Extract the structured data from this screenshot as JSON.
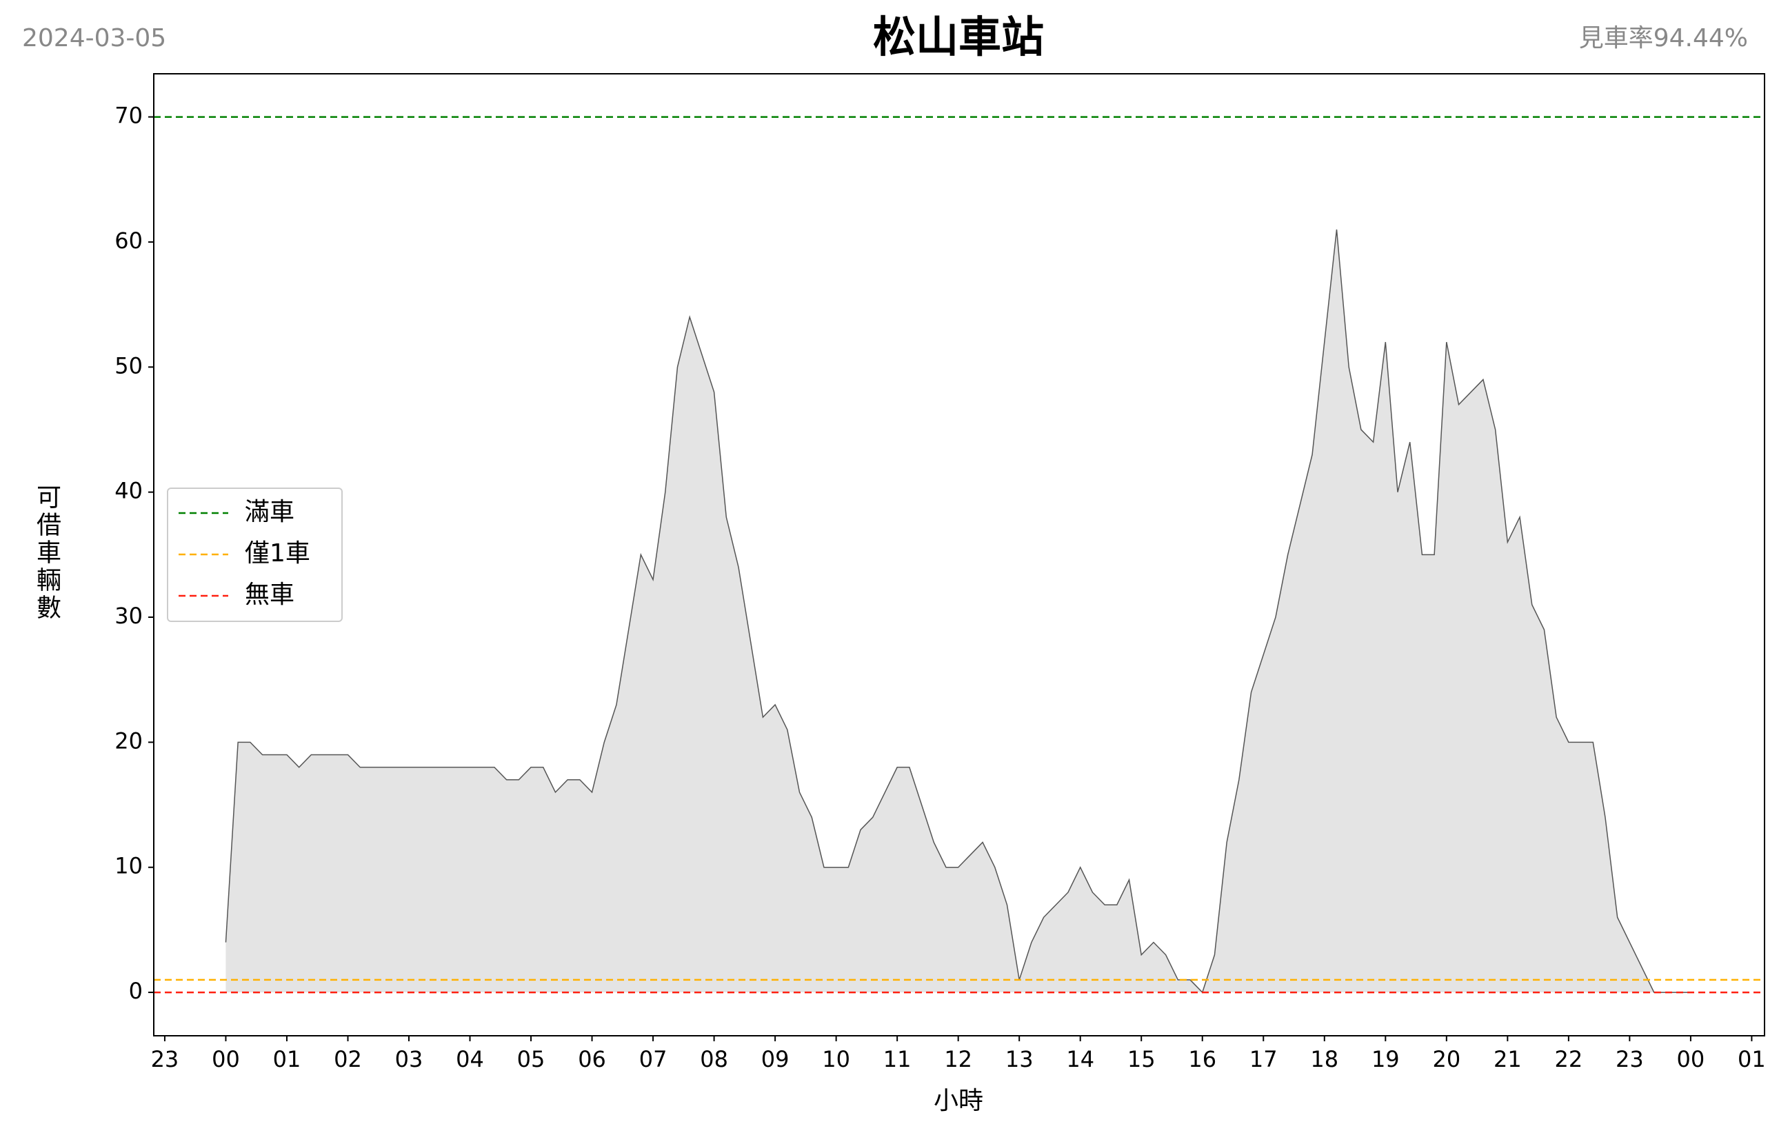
{
  "chart_data": {
    "type": "area",
    "title": "松山車站",
    "date": "2024-03-05",
    "annotation": "見車率94.44%",
    "xlabel": "小時",
    "ylabel": "可借車輛數",
    "x": [
      0,
      0.2,
      0.4,
      0.6,
      0.8,
      1,
      1.2,
      1.4,
      1.6,
      1.8,
      2,
      2.2,
      2.4,
      2.6,
      2.8,
      3,
      3.2,
      3.4,
      3.6,
      3.8,
      4,
      4.2,
      4.4,
      4.6,
      4.8,
      5,
      5.2,
      5.4,
      5.6,
      5.8,
      6,
      6.2,
      6.4,
      6.6,
      6.8,
      7,
      7.2,
      7.4,
      7.6,
      7.8,
      8,
      8.2,
      8.4,
      8.6,
      8.8,
      9,
      9.2,
      9.4,
      9.6,
      9.8,
      10,
      10.2,
      10.4,
      10.6,
      10.8,
      11,
      11.2,
      11.4,
      11.6,
      11.8,
      12,
      12.2,
      12.4,
      12.6,
      12.8,
      13,
      13.2,
      13.4,
      13.6,
      13.8,
      14,
      14.2,
      14.4,
      14.6,
      14.8,
      15,
      15.2,
      15.4,
      15.6,
      15.8,
      16,
      16.2,
      16.4,
      16.6,
      16.8,
      17,
      17.2,
      17.4,
      17.6,
      17.8,
      18,
      18.2,
      18.4,
      18.6,
      18.8,
      19,
      19.2,
      19.4,
      19.6,
      19.8,
      20,
      20.2,
      20.4,
      20.6,
      20.8,
      21,
      21.2,
      21.4,
      21.6,
      21.8,
      22,
      22.2,
      22.4,
      22.6,
      22.8,
      23,
      23.2,
      23.4,
      23.6,
      23.8,
      24
    ],
    "values": [
      4,
      20,
      20,
      19,
      19,
      19,
      18,
      19,
      19,
      19,
      19,
      18,
      18,
      18,
      18,
      18,
      18,
      18,
      18,
      18,
      18,
      18,
      18,
      17,
      17,
      18,
      18,
      16,
      17,
      17,
      16,
      20,
      23,
      29,
      35,
      33,
      40,
      50,
      54,
      51,
      48,
      38,
      34,
      28,
      22,
      23,
      21,
      16,
      14,
      10,
      10,
      10,
      13,
      14,
      16,
      18,
      18,
      15,
      12,
      10,
      10,
      11,
      12,
      10,
      7,
      1,
      4,
      6,
      7,
      8,
      10,
      8,
      7,
      7,
      9,
      3,
      4,
      3,
      1,
      1,
      0,
      3,
      12,
      17,
      24,
      27,
      30,
      35,
      39,
      43,
      52,
      61,
      50,
      45,
      44,
      52,
      40,
      44,
      35,
      35,
      52,
      47,
      48,
      49,
      45,
      36,
      38,
      31,
      29,
      22,
      20,
      20,
      20,
      14,
      6,
      4,
      2,
      0,
      0,
      0,
      0
    ],
    "color": "#e4e4e4",
    "line_color": "#555555",
    "hlines": [
      {
        "name": "滿車",
        "value": 70,
        "color": "#008000"
      },
      {
        "name": "僅1車",
        "value": 1,
        "color": "#ffb000"
      },
      {
        "name": "無車",
        "value": 0,
        "color": "#ff2010"
      }
    ],
    "legend": "center left",
    "xlim": [
      -1.18,
      25.21
    ],
    "ylim": [
      -3.47,
      73.45
    ],
    "xticks": [
      {
        "value": -1,
        "label": "23"
      },
      {
        "value": 0,
        "label": "00"
      },
      {
        "value": 1,
        "label": "01"
      },
      {
        "value": 2,
        "label": "02"
      },
      {
        "value": 3,
        "label": "03"
      },
      {
        "value": 4,
        "label": "04"
      },
      {
        "value": 5,
        "label": "05"
      },
      {
        "value": 6,
        "label": "06"
      },
      {
        "value": 7,
        "label": "07"
      },
      {
        "value": 8,
        "label": "08"
      },
      {
        "value": 9,
        "label": "09"
      },
      10,
      11,
      12,
      13,
      14,
      15,
      16,
      17,
      18,
      19,
      20,
      21,
      22,
      23,
      {
        "value": 24,
        "label": "00"
      },
      {
        "value": 25,
        "label": "01"
      }
    ],
    "yticks": [
      0,
      10,
      20,
      30,
      40,
      50,
      60,
      70
    ]
  }
}
